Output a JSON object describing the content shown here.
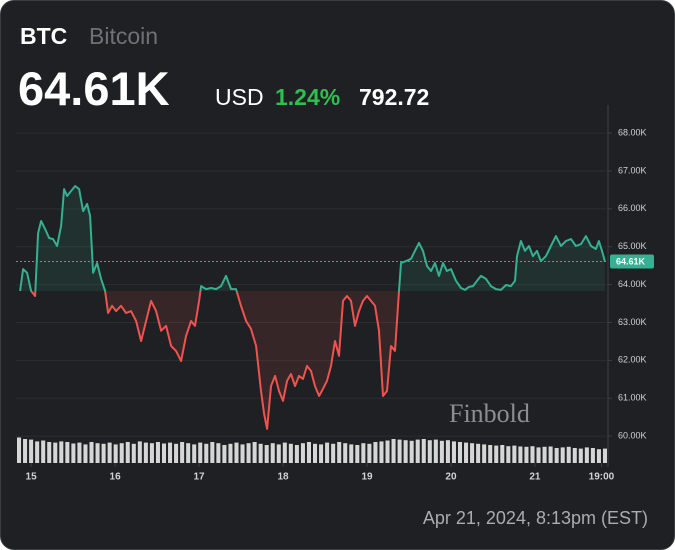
{
  "header": {
    "symbol": "BTC",
    "name": "Bitcoin",
    "price": "64.61K",
    "currency": "USD",
    "change_percent": "1.24%",
    "change": "792.72"
  },
  "watermark": "Finbold",
  "timestamp": "Apr 21, 2024, 8:13pm (EST)",
  "chart_data": {
    "type": "line",
    "series": [
      {
        "color": "#35b092",
        "down_color": "#ef5350",
        "x": [
          14.869,
          14.905,
          14.952,
          15,
          15.048,
          15.083,
          15.119,
          15.167,
          15.214,
          15.262,
          15.31,
          15.357,
          15.393,
          15.429,
          15.476,
          15.524,
          15.571,
          15.619,
          15.667,
          15.702,
          15.738,
          15.786,
          15.833,
          15.881,
          15.917,
          15.964,
          16.012,
          16.071,
          16.131,
          16.19,
          16.25,
          16.31,
          16.369,
          16.429,
          16.488,
          16.548,
          16.607,
          16.667,
          16.726,
          16.786,
          16.845,
          16.905,
          16.952,
          17,
          17.024,
          17.083,
          17.143,
          17.202,
          17.262,
          17.321,
          17.381,
          17.44,
          17.5,
          17.56,
          17.619,
          17.679,
          17.738,
          17.774,
          17.81,
          17.857,
          17.905,
          17.952,
          18,
          18.048,
          18.095,
          18.143,
          18.19,
          18.238,
          18.286,
          18.333,
          18.381,
          18.429,
          18.476,
          18.524,
          18.571,
          18.619,
          18.667,
          18.714,
          18.762,
          18.81,
          18.857,
          18.905,
          18.952,
          19,
          19.048,
          19.095,
          19.143,
          19.19,
          19.238,
          19.286,
          19.333,
          19.381,
          19.405,
          19.464,
          19.524,
          19.571,
          19.619,
          19.667,
          19.714,
          19.762,
          19.81,
          19.857,
          19.905,
          19.952,
          20,
          20.06,
          20.119,
          20.167,
          20.214,
          20.262,
          20.31,
          20.357,
          20.417,
          20.476,
          20.536,
          20.595,
          20.655,
          20.714,
          20.762,
          20.786,
          20.833,
          20.881,
          20.929,
          20.976,
          21.024,
          21.071,
          21.131,
          21.19,
          21.25,
          21.31,
          21.369,
          21.429,
          21.488,
          21.548,
          21.607,
          21.667,
          21.726,
          21.762,
          21.798,
          21.833
        ],
        "values": [
          63830,
          64410,
          64310,
          63830,
          63700,
          65360,
          65680,
          65470,
          65230,
          65200,
          65020,
          65550,
          66520,
          66340,
          66470,
          66600,
          66520,
          65940,
          66130,
          65810,
          64310,
          64570,
          64150,
          63830,
          63250,
          63440,
          63300,
          63440,
          63250,
          63300,
          63040,
          62510,
          63040,
          63570,
          63300,
          62780,
          62910,
          62380,
          62250,
          61980,
          62640,
          63040,
          62910,
          63570,
          63960,
          63880,
          63910,
          63880,
          63960,
          64230,
          63880,
          63880,
          63440,
          63040,
          62830,
          62380,
          61190,
          60590,
          60190,
          61320,
          61590,
          61190,
          60930,
          61460,
          61640,
          61320,
          61590,
          61510,
          61850,
          61720,
          61320,
          61060,
          61250,
          61460,
          61850,
          62510,
          62120,
          63570,
          63700,
          63570,
          62910,
          63300,
          63570,
          63700,
          63570,
          63440,
          62780,
          61060,
          61190,
          62380,
          62250,
          63830,
          64570,
          64620,
          64680,
          64890,
          65100,
          64890,
          64490,
          64360,
          64570,
          64230,
          64570,
          64360,
          64410,
          64100,
          63910,
          63860,
          63940,
          63960,
          64100,
          64230,
          64150,
          63960,
          63880,
          63860,
          63990,
          63960,
          64100,
          64750,
          65150,
          64890,
          65020,
          64750,
          64890,
          64620,
          64750,
          65020,
          65280,
          65020,
          65150,
          65200,
          65020,
          65070,
          65280,
          65020,
          64940,
          65150,
          64890,
          64610
        ]
      }
    ],
    "last_price": {
      "value": 64610,
      "label": "64.61K"
    },
    "volume": {
      "color": "#d6d6d6",
      "vlim": [
        0,
        100
      ],
      "values": [
        85,
        80,
        78,
        72,
        75,
        70,
        68,
        72,
        70,
        65,
        68,
        62,
        70,
        66,
        64,
        68,
        62,
        66,
        70,
        64,
        72,
        68,
        66,
        70,
        65,
        68,
        64,
        70,
        66,
        62,
        68,
        64,
        70,
        66,
        60,
        64,
        68,
        62,
        66,
        70,
        64,
        60,
        66,
        62,
        68,
        64,
        60,
        66,
        70,
        64,
        62,
        68,
        64,
        70,
        66,
        62,
        60,
        66,
        64,
        70,
        72,
        75,
        80,
        78,
        76,
        74,
        78,
        80,
        76,
        78,
        74,
        76,
        72,
        70,
        68,
        66,
        64,
        62,
        60,
        58,
        60,
        56,
        58,
        55,
        54,
        56,
        52,
        54,
        55,
        50,
        52,
        54,
        50,
        48,
        52,
        50,
        46,
        48
      ]
    },
    "xlim": [
      14.82,
      21.87
    ],
    "xticks": [
      15,
      16,
      17,
      18,
      19,
      20,
      21,
      {
        "value": 21.792,
        "label": "19:00"
      }
    ],
    "ylim": [
      59290,
      68530
    ],
    "yticks": [
      {
        "value": 60000,
        "label": "60.00K"
      },
      {
        "value": 61000,
        "label": "61.00K"
      },
      {
        "value": 62000,
        "label": "62.00K"
      },
      {
        "value": 63000,
        "label": "63.00K"
      },
      {
        "value": 64000,
        "label": "64.00K"
      },
      {
        "value": 65000,
        "label": "65.00K"
      },
      {
        "value": 66000,
        "label": "66.00K"
      },
      {
        "value": 67000,
        "label": "67.00K"
      },
      {
        "value": 68000,
        "label": "68.00K"
      }
    ],
    "grid": true
  }
}
